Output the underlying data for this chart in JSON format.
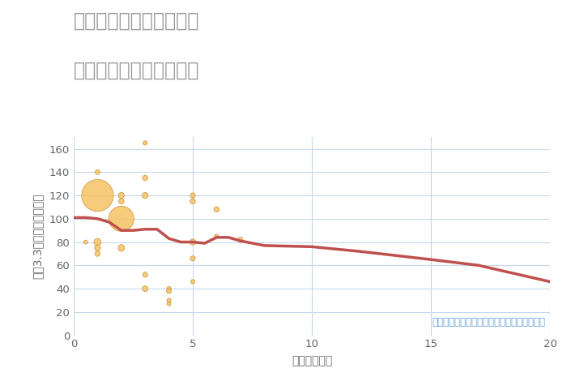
{
  "title_line1": "兵庫県西宮市今津曙町の",
  "title_line2": "駅距離別中古戸建て価格",
  "xlabel": "駅距離（分）",
  "ylabel": "坪（3.3㎡）単価（万円）",
  "annotation": "円の大きさは、取引のあった物件面積を示す",
  "xlim": [
    0,
    20
  ],
  "ylim": [
    0,
    170
  ],
  "yticks": [
    0,
    20,
    40,
    60,
    80,
    100,
    120,
    140,
    160
  ],
  "xticks": [
    0,
    5,
    10,
    15,
    20
  ],
  "line_x": [
    0,
    0.5,
    1,
    1.5,
    2,
    2.5,
    3,
    3.5,
    4,
    4.5,
    5,
    5.5,
    6,
    6.5,
    7,
    8,
    10,
    12,
    15,
    17,
    20
  ],
  "line_y": [
    101,
    101,
    100,
    97,
    90,
    90,
    91,
    91,
    83,
    80,
    80,
    79,
    84,
    84,
    81,
    77,
    76,
    72,
    65,
    60,
    46
  ],
  "scatter_x": [
    0.5,
    1.0,
    1.0,
    1.0,
    1.0,
    1.0,
    2.0,
    2.0,
    2.0,
    2.0,
    3.0,
    3.0,
    3.0,
    3.0,
    3.0,
    4.0,
    4.0,
    4.0,
    4.0,
    5.0,
    5.0,
    5.0,
    5.0,
    5.0,
    6.0,
    6.0,
    7.0
  ],
  "scatter_y": [
    80,
    140,
    120,
    80,
    75,
    70,
    120,
    115,
    100,
    75,
    165,
    135,
    120,
    52,
    40,
    40,
    38,
    30,
    27,
    120,
    115,
    80,
    66,
    46,
    108,
    85,
    82
  ],
  "scatter_size": [
    12,
    18,
    800,
    40,
    28,
    22,
    28,
    22,
    500,
    35,
    14,
    22,
    28,
    20,
    25,
    14,
    20,
    14,
    12,
    20,
    22,
    28,
    20,
    14,
    22,
    14,
    20
  ],
  "scatter_color": "#F5C469",
  "scatter_edge_color": "#C8953A",
  "line_color": "#C0504D",
  "background_color": "#FFFFFF",
  "title_color": "#999999",
  "title_fontsize": 17,
  "label_fontsize": 10,
  "annotation_color": "#5B9BD5",
  "annotation_fontsize": 8.5,
  "grid_color": "#C5D8EC",
  "tick_color": "#666666"
}
